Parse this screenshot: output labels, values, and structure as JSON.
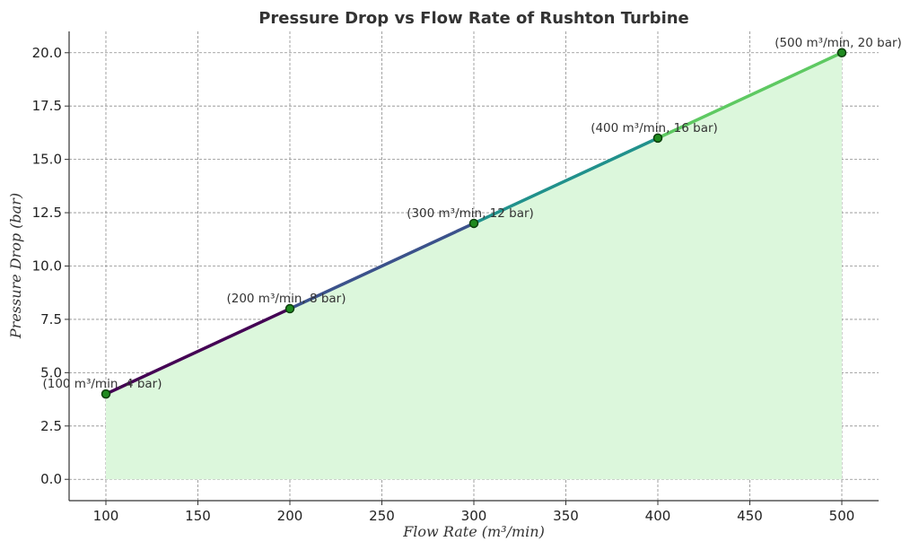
{
  "chart_data": {
    "type": "line",
    "title": "Pressure Drop vs Flow Rate of Rushton Turbine",
    "xlabel": "Flow Rate (m³/min)",
    "ylabel": "Pressure Drop (bar)",
    "x": [
      100,
      200,
      300,
      400,
      500
    ],
    "y": [
      4,
      8,
      12,
      16,
      20
    ],
    "xlim": [
      80,
      520
    ],
    "ylim": [
      -1,
      21
    ],
    "xticks": [
      100,
      150,
      200,
      250,
      300,
      350,
      400,
      450,
      500
    ],
    "yticks": [
      0.0,
      2.5,
      5.0,
      7.5,
      10.0,
      12.5,
      15.0,
      17.5,
      20.0
    ],
    "xtick_labels": [
      "100",
      "150",
      "200",
      "250",
      "300",
      "350",
      "400",
      "450",
      "500"
    ],
    "ytick_labels": [
      "0.0",
      "2.5",
      "5.0",
      "7.5",
      "10.0",
      "12.5",
      "15.0",
      "17.5",
      "20.0"
    ],
    "annotations": [
      "(100 m³/min, 4 bar)",
      "(200 m³/min, 8 bar)",
      "(300 m³/min, 12 bar)",
      "(400 m³/min, 16 bar)",
      "(500 m³/min, 20 bar)"
    ],
    "grid": true,
    "fill_under": true,
    "colors": {
      "fill": "#dcf7dc",
      "segments": [
        "#440154",
        "#3b528b",
        "#21918c",
        "#5ec962"
      ],
      "marker_fill": "#1f8a1f",
      "marker_edge": "#0b3d0b"
    }
  }
}
